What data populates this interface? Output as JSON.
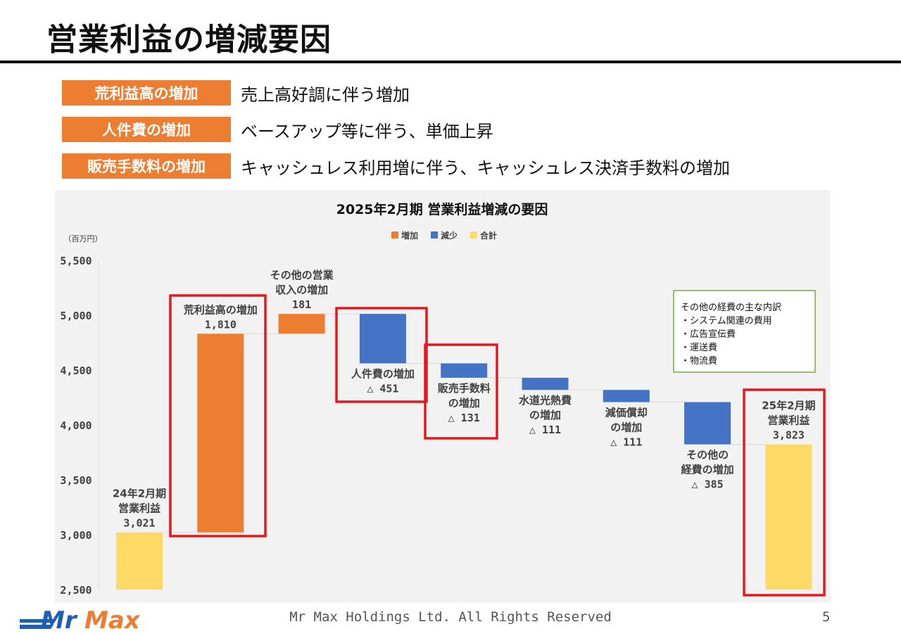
{
  "slide": {
    "title": "営業利益の増減要因",
    "page_number": "5",
    "footer": "Mr Max Holdings Ltd. All Rights Reserved",
    "logo_text": "MrMax"
  },
  "reasons": [
    {
      "label": "荒利益高の増加",
      "description": "売上高好調に伴う増加"
    },
    {
      "label": "人件費の増加",
      "description": "ベースアップ等に伴う、単価上昇"
    },
    {
      "label": "販売手数料の増加",
      "description": "キャッシュレス利用増に伴う、キャッシュレス決済手数料の増加"
    }
  ],
  "colors": {
    "increase": "#ED7D31",
    "decrease": "#4472C4",
    "total": "#FFD966",
    "highlight": "#E31A1C",
    "note_border": "#70AD47"
  },
  "chart_data": {
    "type": "bar",
    "subtype": "waterfall",
    "title": "2025年2月期  営業利益増減の要因",
    "unit_label": "（百万円）",
    "ylim": [
      2500,
      5500
    ],
    "yticks": [
      "2,500",
      "3,000",
      "3,500",
      "4,000",
      "4,500",
      "5,000",
      "5,500"
    ],
    "ytick_values": [
      2500,
      3000,
      3500,
      4000,
      4500,
      5000,
      5500
    ],
    "legend": [
      "増加",
      "減少",
      "合計"
    ],
    "legend_position": "top-center",
    "bars": [
      {
        "lines": [
          "24年2月期",
          "営業利益"
        ],
        "value_label": "3,021",
        "kind": "total",
        "start": 2500,
        "end": 3021,
        "highlight": false
      },
      {
        "lines": [
          "荒利益高の増加"
        ],
        "value_label": "1,810",
        "kind": "increase",
        "start": 3021,
        "end": 4831,
        "highlight": true
      },
      {
        "lines": [
          "その他の営業",
          "収入の増加"
        ],
        "value_label": "181",
        "kind": "increase",
        "start": 4831,
        "end": 5012,
        "highlight": false
      },
      {
        "lines": [
          "人件費の増加"
        ],
        "value_label": "△ 451",
        "kind": "decrease",
        "start": 5012,
        "end": 4561,
        "highlight": true
      },
      {
        "lines": [
          "販売手数料",
          "の増加"
        ],
        "value_label": "△ 131",
        "kind": "decrease",
        "start": 4561,
        "end": 4430,
        "highlight": true
      },
      {
        "lines": [
          "水道光熱費",
          "の増加"
        ],
        "value_label": "△ 111",
        "kind": "decrease",
        "start": 4430,
        "end": 4319,
        "highlight": false
      },
      {
        "lines": [
          "減価償却",
          "の増加"
        ],
        "value_label": "△ 111",
        "kind": "decrease",
        "start": 4319,
        "end": 4208,
        "highlight": false
      },
      {
        "lines": [
          "その他の",
          "経費の増加"
        ],
        "value_label": "△ 385",
        "kind": "decrease",
        "start": 4208,
        "end": 3823,
        "highlight": false
      },
      {
        "lines": [
          "25年2月期",
          "営業利益"
        ],
        "value_label": "3,823",
        "kind": "total",
        "start": 2500,
        "end": 3823,
        "highlight": true
      }
    ],
    "note": {
      "title": "その他の経費の主な内訳",
      "items": [
        "・システム関連の費用",
        "・広告宣伝費",
        "・運送費",
        "・物流費"
      ]
    }
  }
}
